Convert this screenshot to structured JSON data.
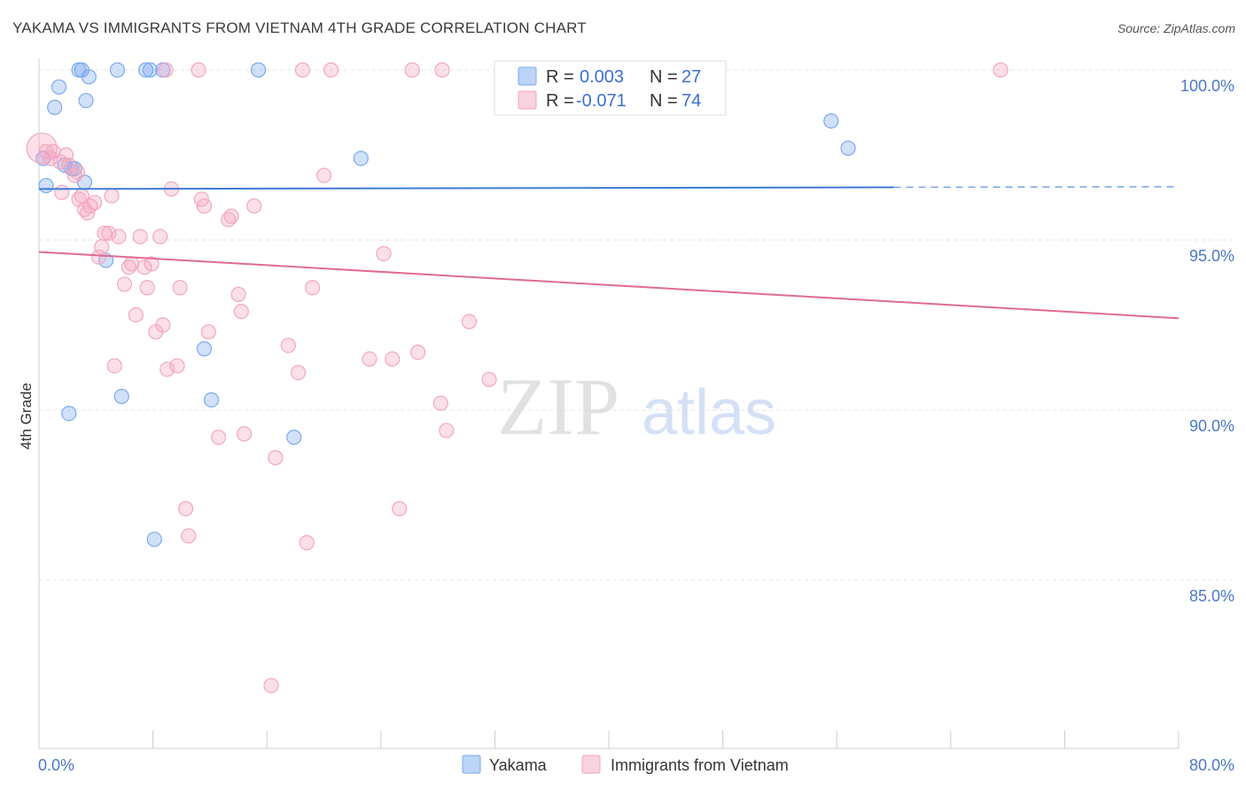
{
  "title": "YAKAMA VS IMMIGRANTS FROM VIETNAM 4TH GRADE CORRELATION CHART",
  "source": "Source: ZipAtlas.com",
  "watermark": {
    "zip": "ZIP",
    "atlas": "atlas"
  },
  "chart_data": {
    "type": "scatter",
    "ylabel": "4th Grade",
    "xlim": [
      0,
      80
    ],
    "ylim": [
      80.5,
      100.7
    ],
    "x_tick_labels": [
      "0.0%",
      "80.0%"
    ],
    "y_ticks": [
      100,
      95,
      90,
      85
    ],
    "y_tick_labels": [
      "100.0%",
      "95.0%",
      "90.0%",
      "85.0%"
    ],
    "grid": true,
    "legend_position": "top-center",
    "series": [
      {
        "name": "Yakama",
        "color": "#7aaaf0",
        "line_color": "#3d7bd3",
        "r_label": "R =",
        "r_value": "0.003",
        "n_label": "N =",
        "n_value": "27",
        "trend": {
          "x0": 0,
          "y0": 96.5,
          "x1": 60,
          "y1": 96.55,
          "dashed_to_x": 80
        },
        "points": [
          [
            0.3,
            97.4
          ],
          [
            0.5,
            96.6
          ],
          [
            1.1,
            98.9
          ],
          [
            1.4,
            99.5
          ],
          [
            1.8,
            97.2
          ],
          [
            2.1,
            89.9
          ],
          [
            2.3,
            97.1
          ],
          [
            2.5,
            97.1
          ],
          [
            2.8,
            100
          ],
          [
            3.0,
            100
          ],
          [
            3.2,
            96.7
          ],
          [
            3.3,
            99.1
          ],
          [
            3.5,
            99.8
          ],
          [
            4.7,
            94.4
          ],
          [
            5.5,
            100
          ],
          [
            5.8,
            90.4
          ],
          [
            7.5,
            100
          ],
          [
            7.8,
            100
          ],
          [
            8.1,
            86.2
          ],
          [
            8.7,
            100
          ],
          [
            11.6,
            91.8
          ],
          [
            12.1,
            90.3
          ],
          [
            15.4,
            100
          ],
          [
            17.9,
            89.2
          ],
          [
            22.6,
            97.4
          ],
          [
            55.6,
            98.5
          ],
          [
            56.8,
            97.7
          ]
        ]
      },
      {
        "name": "Immigrants from Vietnam",
        "color": "#f4a6c0",
        "line_color": "#e06a96",
        "r_label": "R =",
        "r_value": "-0.071",
        "n_label": "N =",
        "n_value": "74",
        "trend": {
          "x0": 0,
          "y0": 94.65,
          "x1": 80,
          "y1": 92.7
        },
        "points": [
          [
            0.5,
            97.6
          ],
          [
            1.0,
            97.6
          ],
          [
            1.5,
            97.3
          ],
          [
            1.6,
            96.4
          ],
          [
            1.9,
            97.5
          ],
          [
            2.1,
            97.2
          ],
          [
            2.5,
            96.9
          ],
          [
            2.8,
            96.2
          ],
          [
            3.0,
            96.3
          ],
          [
            3.2,
            95.9
          ],
          [
            3.4,
            95.8
          ],
          [
            3.6,
            96.0
          ],
          [
            3.9,
            96.1
          ],
          [
            4.2,
            94.5
          ],
          [
            4.4,
            94.8
          ],
          [
            4.6,
            95.2
          ],
          [
            4.9,
            95.2
          ],
          [
            5.1,
            96.3
          ],
          [
            5.3,
            91.3
          ],
          [
            5.6,
            95.1
          ],
          [
            6.0,
            93.7
          ],
          [
            6.3,
            94.2
          ],
          [
            6.5,
            94.3
          ],
          [
            6.8,
            92.8
          ],
          [
            7.1,
            95.1
          ],
          [
            7.4,
            94.2
          ],
          [
            7.6,
            93.6
          ],
          [
            7.9,
            94.3
          ],
          [
            8.2,
            92.3
          ],
          [
            8.5,
            95.1
          ],
          [
            8.7,
            92.5
          ],
          [
            8.9,
            100
          ],
          [
            9.0,
            91.2
          ],
          [
            9.3,
            96.5
          ],
          [
            9.7,
            91.3
          ],
          [
            9.9,
            93.6
          ],
          [
            10.3,
            87.1
          ],
          [
            10.5,
            86.3
          ],
          [
            11.2,
            100
          ],
          [
            11.4,
            96.2
          ],
          [
            11.6,
            96.0
          ],
          [
            11.9,
            92.3
          ],
          [
            12.6,
            89.2
          ],
          [
            13.3,
            95.6
          ],
          [
            13.5,
            95.7
          ],
          [
            14.0,
            93.4
          ],
          [
            14.2,
            92.9
          ],
          [
            14.4,
            89.3
          ],
          [
            15.1,
            96.0
          ],
          [
            16.3,
            81.9
          ],
          [
            16.6,
            88.6
          ],
          [
            17.5,
            91.9
          ],
          [
            18.2,
            91.1
          ],
          [
            18.5,
            100
          ],
          [
            18.8,
            86.1
          ],
          [
            19.2,
            93.6
          ],
          [
            20.0,
            96.9
          ],
          [
            20.5,
            100
          ],
          [
            23.2,
            91.5
          ],
          [
            24.2,
            94.6
          ],
          [
            24.8,
            91.5
          ],
          [
            25.3,
            87.1
          ],
          [
            26.2,
            100
          ],
          [
            26.6,
            91.7
          ],
          [
            28.2,
            90.2
          ],
          [
            28.3,
            100
          ],
          [
            28.6,
            89.4
          ],
          [
            30.2,
            92.6
          ],
          [
            31.6,
            90.9
          ],
          [
            43.0,
            100
          ],
          [
            67.5,
            100
          ],
          [
            0.2,
            97.7
          ],
          [
            0.8,
            97.4
          ],
          [
            2.7,
            97.0
          ]
        ]
      }
    ]
  }
}
